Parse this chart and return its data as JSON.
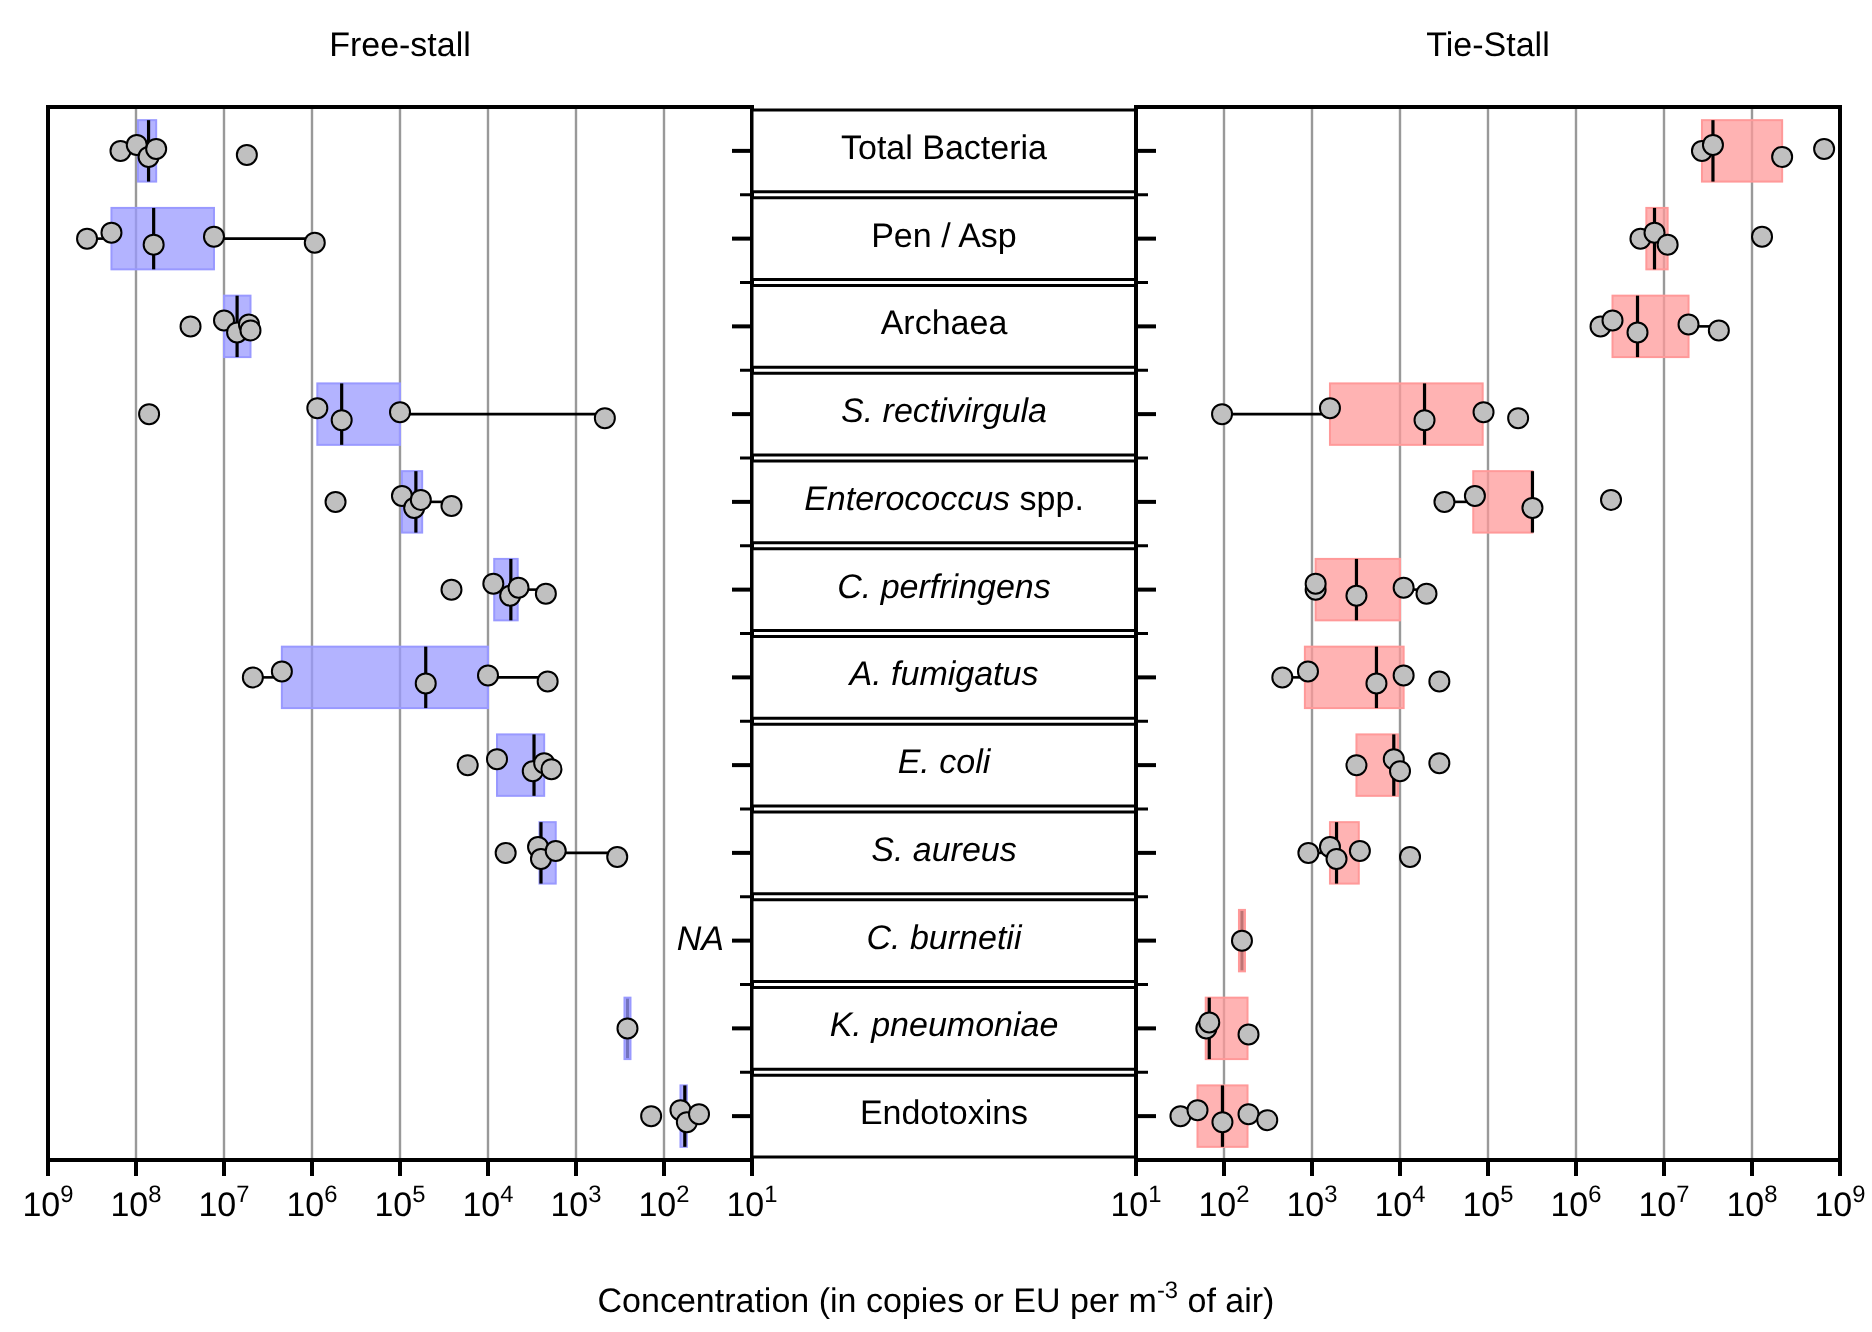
{
  "chart_data": [
    {
      "type": "box",
      "title": "Free-stall",
      "xlabel": "Concentration (in copies or EU per m$^{-3}$ of air)",
      "orientation": "horizontal",
      "grid": "x",
      "marker": "circle",
      "categories": [
        "Total Bacteria",
        "Pen / Asp",
        "Archaea",
        "S. rectivirgula",
        "Enterococcus spp.",
        "C. perfringens",
        "A. fumigatus",
        "E. coli",
        "S. aureus",
        "C. burnetii",
        "K. pneumoniae",
        "Endotoxins"
      ],
      "xlim": [
        1000000000,
        10
      ],
      "xticks": [
        {
          "value": 1000000000,
          "label": "10$^{9}$"
        },
        {
          "value": 100000000,
          "label": "10$^{8}$"
        },
        {
          "value": 10000000,
          "label": "10$^{7}$"
        },
        {
          "value": 1000000,
          "label": "10$^{6}$"
        },
        {
          "value": 100000,
          "label": "10$^{5}$"
        },
        {
          "value": 10000,
          "label": "10$^{4}$"
        },
        {
          "value": 1000,
          "label": "10$^{3}$"
        },
        {
          "value": 100,
          "label": "10$^{2}$"
        },
        {
          "value": 10,
          "label": "10$^{1}$"
        }
      ],
      "annotations": [
        "NA"
      ],
      "log": "x",
      "series": [
        {
          "type": "box",
          "color": "#9999ff",
          "boxes": [
            {
              "low": 59000000,
              "q1": 59000000,
              "median": 72000000,
              "q3": 95000000,
              "high": 95000000
            },
            {
              "low": 930000,
              "q1": 13000000,
              "median": 63000000,
              "q3": 190000000,
              "high": 360000000
            },
            {
              "low": 5000000,
              "q1": 5000000,
              "median": 7100000,
              "q3": 10000000,
              "high": 10000000
            },
            {
              "low": 470,
              "q1": 100000,
              "median": 460000,
              "q3": 870000,
              "high": 870000
            },
            {
              "low": 26000,
              "q1": 56000,
              "median": 66000,
              "q3": 95000,
              "high": 95000
            },
            {
              "low": 2200,
              "q1": 4600,
              "median": 5500,
              "q3": 8500,
              "high": 8500
            },
            {
              "low": 2100,
              "q1": 10000,
              "median": 51000,
              "q3": 2200000,
              "high": 4700000
            },
            {
              "low": 2300,
              "q1": 2300,
              "median": 3000,
              "q3": 7900,
              "high": 7900
            },
            {
              "low": 340,
              "q1": 1700,
              "median": 2500,
              "q3": 2600,
              "high": 2600
            },
            null,
            {
              "low": 260,
              "q1": 260,
              "median": 260,
              "q3": 260,
              "high": 260
            },
            {
              "low": 55,
              "q1": 55,
              "median": 58,
              "q3": 65,
              "high": 65
            }
          ]
        },
        {
          "type": "scatter",
          "color": "#c0c0c0",
          "x": [
            "Total Bacteria",
            "Total Bacteria",
            "Total Bacteria",
            "Total Bacteria",
            "Total Bacteria",
            "Pen / Asp",
            "Pen / Asp",
            "Pen / Asp",
            "Pen / Asp",
            "Pen / Asp",
            "Archaea",
            "Archaea",
            "Archaea",
            "Archaea",
            "Archaea",
            "S. rectivirgula",
            "S. rectivirgula",
            "S. rectivirgula",
            "S. rectivirgula",
            "S. rectivirgula",
            "Enterococcus spp.",
            "Enterococcus spp.",
            "Enterococcus spp.",
            "Enterococcus spp.",
            "Enterococcus spp.",
            "C. perfringens",
            "C. perfringens",
            "C. perfringens",
            "C. perfringens",
            "C. perfringens",
            "A. fumigatus",
            "A. fumigatus",
            "A. fumigatus",
            "A. fumigatus",
            "A. fumigatus",
            "E. coli",
            "E. coli",
            "E. coli",
            "E. coli",
            "E. coli",
            "S. aureus",
            "S. aureus",
            "S. aureus",
            "S. aureus",
            "S. aureus",
            "K. pneumoniae",
            "Endotoxins",
            "Endotoxins",
            "Endotoxins",
            "Endotoxins"
          ],
          "values": [
            150000000,
            98000000,
            72000000,
            59000000,
            5500000,
            360000000,
            190000000,
            63000000,
            13000000,
            930000,
            24000000,
            10000000,
            7100000,
            5200000,
            5000000,
            71000000,
            870000,
            460000,
            100000,
            470,
            540000,
            95000,
            69000,
            58000,
            26000,
            26000,
            8700,
            5600,
            4500,
            2200,
            4700000,
            2200000,
            51000,
            10000,
            2100,
            17000,
            7900,
            3100,
            2300,
            1900,
            6300,
            2700,
            2500,
            1700,
            340,
            260,
            140,
            65,
            55,
            40
          ]
        }
      ]
    },
    {
      "type": "box",
      "title": "Tie-Stall",
      "log": "x",
      "orientation": "horizontal",
      "grid": "x",
      "marker": "circle",
      "tick_labels": "x",
      "categories": [
        "Total Bacteria",
        "Pen / Asp",
        "Archaea",
        "S. rectivirgula",
        "Enterococcus spp.",
        "C. perfringens",
        "A. fumigatus",
        "E. coli",
        "S. aureus",
        "C. burnetii",
        "K. pneumoniae",
        "Endotoxins"
      ],
      "xlim": [
        10,
        1000000000
      ],
      "xticks": [
        {
          "value": 10,
          "label": "10$^{1}$"
        },
        {
          "value": 100,
          "label": "10$^{2}$"
        },
        {
          "value": 1000,
          "label": "10$^{3}$"
        },
        {
          "value": 10000,
          "label": "10$^{4}$"
        },
        {
          "value": 100000,
          "label": "10$^{5}$"
        },
        {
          "value": 1000000,
          "label": "10$^{6}$"
        },
        {
          "value": 10000000,
          "label": "10$^{7}$"
        },
        {
          "value": 100000000,
          "label": "10$^{8}$"
        },
        {
          "value": 1000000000,
          "label": "10$^{9}$"
        }
      ],
      "series": [
        {
          "type": "box",
          "color": "#ff9999",
          "boxes": [
            {
              "low": 27000000,
              "q1": 27000000,
              "median": 36000000,
              "q3": 220000000,
              "high": 220000000
            },
            {
              "low": 6300000,
              "q1": 6300000,
              "median": 7800000,
              "q3": 11000000,
              "high": 11000000
            },
            {
              "low": 1900000,
              "q1": 2600000,
              "median": 5000000,
              "q3": 19000000,
              "high": 42000000
            },
            {
              "low": 95,
              "q1": 1600,
              "median": 19000,
              "q3": 87000,
              "high": 87000
            },
            {
              "low": 32000,
              "q1": 68000,
              "median": 320000,
              "q3": 320000,
              "high": 320000
            },
            {
              "low": 1100,
              "q1": 1100,
              "median": 3200,
              "q3": 10000,
              "high": 20000
            },
            {
              "low": 460,
              "q1": 830,
              "median": 5400,
              "q3": 11000,
              "high": 11000
            },
            {
              "low": 3200,
              "q1": 3200,
              "median": 8500,
              "q3": 9500,
              "high": 9500
            },
            {
              "low": 910,
              "q1": 1600,
              "median": 1900,
              "q3": 3400,
              "high": 3400
            },
            {
              "low": 160,
              "q1": 160,
              "median": 160,
              "q3": 160,
              "high": 160
            },
            {
              "low": 62,
              "q1": 62,
              "median": 68,
              "q3": 185,
              "high": 185
            },
            {
              "low": 32,
              "q1": 50,
              "median": 96,
              "q3": 185,
              "high": 310
            }
          ]
        },
        {
          "type": "scatter",
          "color": "#c0c0c0",
          "x": [
            "Total Bacteria",
            "Total Bacteria",
            "Total Bacteria",
            "Total Bacteria",
            "Pen / Asp",
            "Pen / Asp",
            "Pen / Asp",
            "Pen / Asp",
            "Archaea",
            "Archaea",
            "Archaea",
            "Archaea",
            "Archaea",
            "S. rectivirgula",
            "S. rectivirgula",
            "S. rectivirgula",
            "S. rectivirgula",
            "S. rectivirgula",
            "Enterococcus spp.",
            "Enterococcus spp.",
            "Enterococcus spp.",
            "Enterococcus spp.",
            "C. perfringens",
            "C. perfringens",
            "C. perfringens",
            "C. perfringens",
            "C. perfringens",
            "A. fumigatus",
            "A. fumigatus",
            "A. fumigatus",
            "A. fumigatus",
            "A. fumigatus",
            "E. coli",
            "E. coli",
            "E. coli",
            "E. coli",
            "S. aureus",
            "S. aureus",
            "S. aureus",
            "S. aureus",
            "S. aureus",
            "C. burnetii",
            "K. pneumoniae",
            "K. pneumoniae",
            "K. pneumoniae",
            "Endotoxins",
            "Endotoxins",
            "Endotoxins",
            "Endotoxins",
            "Endotoxins"
          ],
          "values": [
            27000000,
            36000000,
            220000000,
            660000000,
            5400000,
            7800000,
            11000000,
            130000000,
            1900000,
            2600000,
            5000000,
            19000000,
            42000000,
            95,
            1600,
            19000,
            89000,
            220000,
            32000,
            71000,
            320000,
            2500000,
            1100,
            1100,
            3200,
            11000,
            20000,
            460,
            900,
            5400,
            11000,
            28000,
            3200,
            8500,
            10000,
            28000,
            910,
            1600,
            1900,
            3500,
            13000,
            160,
            63,
            68,
            190,
            32,
            50,
            96,
            190,
            310
          ]
        }
      ]
    }
  ]
}
